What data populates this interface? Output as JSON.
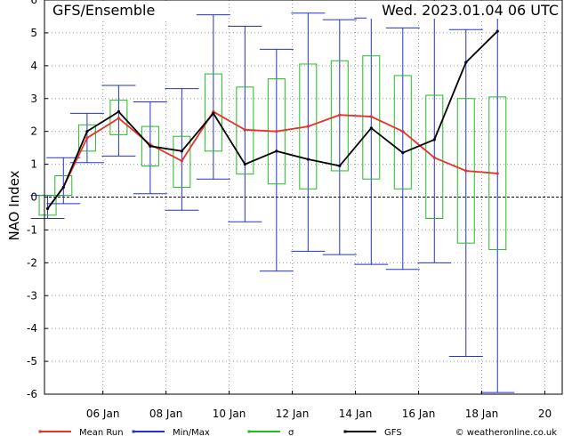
{
  "chart_data": {
    "type": "line",
    "title": "GFS/Ensemble",
    "subtitle": "Wed. 2023.01.04   06 UTC",
    "ylabel": "NAO Index",
    "xlabel": "",
    "ylim": [
      -6,
      6
    ],
    "yticks": [
      "-6",
      "-5",
      "-4",
      "-3",
      "-2",
      "-1",
      "0",
      "1",
      "2",
      "3",
      "4",
      "5",
      "6"
    ],
    "xticks": [
      {
        "x": 6,
        "label": "06 Jan"
      },
      {
        "x": 8,
        "label": "08 Jan"
      },
      {
        "x": 10,
        "label": "10 Jan"
      },
      {
        "x": 12,
        "label": "12 Jan"
      },
      {
        "x": 14,
        "label": "14 Jan"
      },
      {
        "x": 16,
        "label": "16 Jan"
      },
      {
        "x": 18,
        "label": "18 Jan"
      },
      {
        "x": 20,
        "label": "20"
      }
    ],
    "x": [
      4.25,
      4.75,
      5.5,
      6.5,
      7.5,
      8.5,
      9.5,
      10.5,
      11.5,
      12.5,
      13.5,
      14.5,
      15.5,
      16.5,
      17.5,
      18.5,
      19.5,
      20.5
    ],
    "gfs": [
      -0.35,
      0.3,
      2.0,
      2.6,
      1.55,
      1.4,
      2.55,
      1.0,
      1.4,
      1.15,
      0.95,
      2.1,
      1.35,
      1.75,
      4.1,
      5.05,
      null,
      null
    ],
    "mean": [
      -0.35,
      0.3,
      1.8,
      2.4,
      1.6,
      1.1,
      2.6,
      2.05,
      2.0,
      2.15,
      2.5,
      2.45,
      2.0,
      1.2,
      0.8,
      0.72,
      null,
      null
    ],
    "boxes": [
      {
        "x": 4.25,
        "min": -0.65,
        "max": 0.05,
        "q1": -0.55,
        "q3": 0.05
      },
      {
        "x": 4.75,
        "min": -0.2,
        "max": 1.2,
        "q1": 0.05,
        "q3": 0.65
      },
      {
        "x": 5.5,
        "min": 1.05,
        "max": 2.55,
        "q1": 1.4,
        "q3": 2.2
      },
      {
        "x": 6.5,
        "min": 1.25,
        "max": 3.4,
        "q1": 1.9,
        "q3": 2.95
      },
      {
        "x": 7.5,
        "min": 0.1,
        "max": 2.9,
        "q1": 0.95,
        "q3": 2.15
      },
      {
        "x": 8.5,
        "min": -0.4,
        "max": 3.3,
        "q1": 0.3,
        "q3": 1.85
      },
      {
        "x": 9.5,
        "min": 0.55,
        "max": 5.55,
        "q1": 1.4,
        "q3": 3.75
      },
      {
        "x": 10.5,
        "min": -0.75,
        "max": 5.2,
        "q1": 0.7,
        "q3": 3.35
      },
      {
        "x": 11.5,
        "min": -2.25,
        "max": 4.5,
        "q1": 0.4,
        "q3": 3.6
      },
      {
        "x": 12.5,
        "min": -1.65,
        "max": 5.6,
        "q1": 0.25,
        "q3": 4.05
      },
      {
        "x": 13.5,
        "min": -1.75,
        "max": 5.4,
        "q1": 0.8,
        "q3": 4.15
      },
      {
        "x": 14.5,
        "min": -2.05,
        "max": 5.45,
        "q1": 0.55,
        "q3": 4.3
      },
      {
        "x": 15.5,
        "min": -2.2,
        "max": 5.15,
        "q1": 0.25,
        "q3": 3.7
      },
      {
        "x": 16.5,
        "min": -2.0,
        "max": 6.0,
        "q1": -0.65,
        "q3": 3.1
      },
      {
        "x": 17.5,
        "min": -4.85,
        "max": 5.1,
        "q1": -1.4,
        "q3": 3.0
      },
      {
        "x": 18.5,
        "min": -5.95,
        "max": 6.0,
        "q1": -1.6,
        "q3": 3.05
      }
    ],
    "legend": [
      {
        "label": "Mean Run",
        "color": "#e8332a"
      },
      {
        "label": "Min/Max",
        "color": "#2233cc"
      },
      {
        "label": "σ",
        "color": "#22bb22"
      },
      {
        "label": "GFS",
        "color": "#000000"
      }
    ],
    "colors": {
      "gfs": "#000000",
      "mean": "#e8332a",
      "minmax": "#2233cc",
      "sigma": "#22bb22",
      "grid": "#9a9a9a"
    },
    "credit": "© weatheronline.co.uk",
    "grid": true,
    "legend_position": "bottom"
  }
}
